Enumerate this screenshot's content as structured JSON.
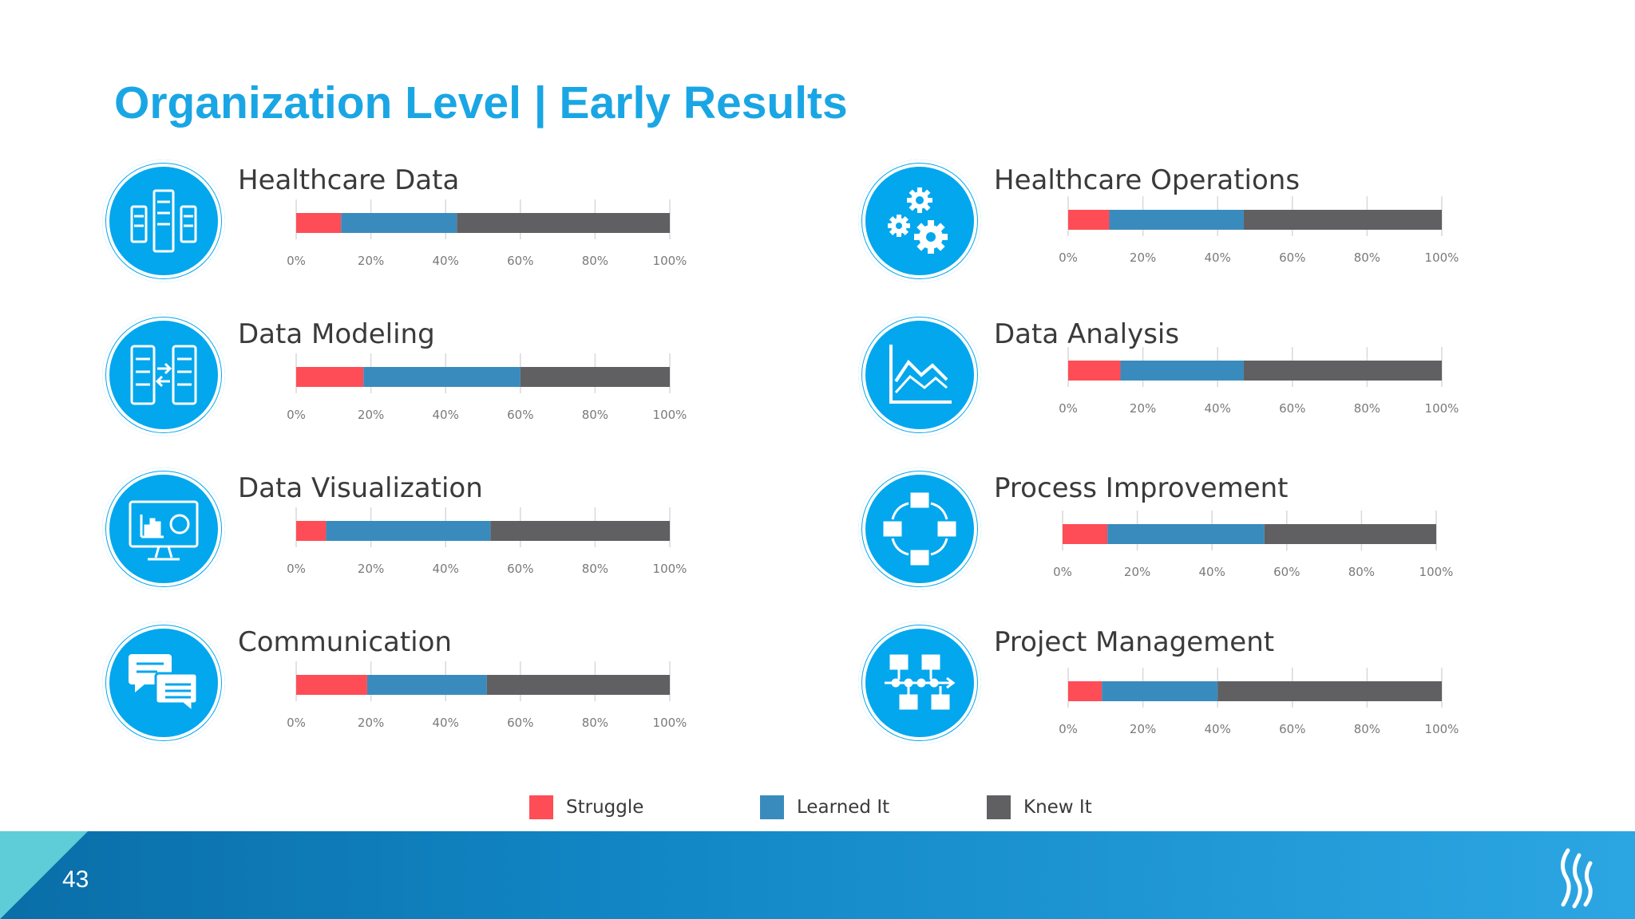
{
  "slide": {
    "title": "Organization Level | Early Results",
    "page_number": "43"
  },
  "colors": {
    "title": "#1aa6e4",
    "struggle": "#fe4d56",
    "learned": "#3a8bbd",
    "knew": "#606062",
    "icon_circle": "#03a7ed",
    "footer": "#1a8fd0"
  },
  "legend": [
    {
      "label": "Struggle",
      "color": "#fe4d56"
    },
    {
      "label": "Learned It",
      "color": "#3a8bbd"
    },
    {
      "label": "Knew It",
      "color": "#606062"
    }
  ],
  "chart_data": [
    {
      "type": "bar",
      "stacked": true,
      "orientation": "horizontal",
      "title": "Healthcare Data",
      "icon": "servers-icon",
      "xlim": [
        0,
        100
      ],
      "ticks": [
        "0%",
        "20%",
        "40%",
        "60%",
        "80%",
        "100%"
      ],
      "series": [
        {
          "name": "Struggle",
          "values": [
            12
          ]
        },
        {
          "name": "Learned It",
          "values": [
            31
          ]
        },
        {
          "name": "Knew It",
          "values": [
            57
          ]
        }
      ]
    },
    {
      "type": "bar",
      "stacked": true,
      "orientation": "horizontal",
      "title": "Data Modeling",
      "icon": "database-transfer-icon",
      "xlim": [
        0,
        100
      ],
      "ticks": [
        "0%",
        "20%",
        "40%",
        "60%",
        "80%",
        "100%"
      ],
      "series": [
        {
          "name": "Struggle",
          "values": [
            18
          ]
        },
        {
          "name": "Learned It",
          "values": [
            42
          ]
        },
        {
          "name": "Knew It",
          "values": [
            40
          ]
        }
      ]
    },
    {
      "type": "bar",
      "stacked": true,
      "orientation": "horizontal",
      "title": "Data Visualization",
      "icon": "monitor-chart-icon",
      "xlim": [
        0,
        100
      ],
      "ticks": [
        "0%",
        "20%",
        "40%",
        "60%",
        "80%",
        "100%"
      ],
      "series": [
        {
          "name": "Struggle",
          "values": [
            8
          ]
        },
        {
          "name": "Learned It",
          "values": [
            44
          ]
        },
        {
          "name": "Knew It",
          "values": [
            48
          ]
        }
      ]
    },
    {
      "type": "bar",
      "stacked": true,
      "orientation": "horizontal",
      "title": "Communication",
      "icon": "chat-bubbles-icon",
      "xlim": [
        0,
        100
      ],
      "ticks": [
        "0%",
        "20%",
        "40%",
        "60%",
        "80%",
        "100%"
      ],
      "series": [
        {
          "name": "Struggle",
          "values": [
            19
          ]
        },
        {
          "name": "Learned It",
          "values": [
            32
          ]
        },
        {
          "name": "Knew It",
          "values": [
            49
          ]
        }
      ]
    },
    {
      "type": "bar",
      "stacked": true,
      "orientation": "horizontal",
      "title": "Healthcare Operations",
      "icon": "gears-icon",
      "xlim": [
        0,
        100
      ],
      "ticks": [
        "0%",
        "20%",
        "40%",
        "60%",
        "80%",
        "100%"
      ],
      "series": [
        {
          "name": "Struggle",
          "values": [
            11
          ]
        },
        {
          "name": "Learned It",
          "values": [
            36
          ]
        },
        {
          "name": "Knew It",
          "values": [
            53
          ]
        }
      ]
    },
    {
      "type": "bar",
      "stacked": true,
      "orientation": "horizontal",
      "title": "Data Analysis",
      "icon": "line-chart-icon",
      "xlim": [
        0,
        100
      ],
      "ticks": [
        "0%",
        "20%",
        "40%",
        "60%",
        "80%",
        "100%"
      ],
      "series": [
        {
          "name": "Struggle",
          "values": [
            14
          ]
        },
        {
          "name": "Learned It",
          "values": [
            33
          ]
        },
        {
          "name": "Knew It",
          "values": [
            53
          ]
        }
      ]
    },
    {
      "type": "bar",
      "stacked": true,
      "orientation": "horizontal",
      "title": "Process Improvement",
      "icon": "process-cycle-icon",
      "xlim": [
        0,
        100
      ],
      "ticks": [
        "0%",
        "20%",
        "40%",
        "60%",
        "80%",
        "100%"
      ],
      "series": [
        {
          "name": "Struggle",
          "values": [
            12
          ]
        },
        {
          "name": "Learned It",
          "values": [
            42
          ]
        },
        {
          "name": "Knew It",
          "values": [
            46
          ]
        }
      ]
    },
    {
      "type": "bar",
      "stacked": true,
      "orientation": "horizontal",
      "title": "Project Management",
      "icon": "project-flow-icon",
      "xlim": [
        0,
        100
      ],
      "ticks": [
        "0%",
        "20%",
        "40%",
        "60%",
        "80%",
        "100%"
      ],
      "series": [
        {
          "name": "Struggle",
          "values": [
            9
          ]
        },
        {
          "name": "Learned It",
          "values": [
            31
          ]
        },
        {
          "name": "Knew It",
          "values": [
            60
          ]
        }
      ]
    }
  ]
}
